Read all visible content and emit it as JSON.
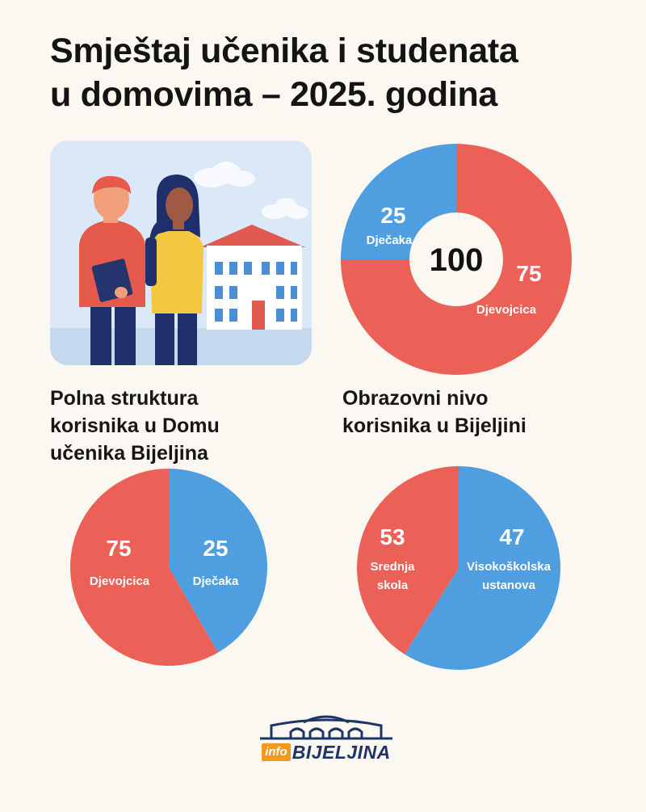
{
  "title": {
    "line1": "Smještaj učenika i studenata",
    "line2": "u domovima – 2025. godina"
  },
  "colors": {
    "red": "#eb6157",
    "blue": "#4f9ee0",
    "background": "#fbf8f1"
  },
  "chart_data": [
    {
      "type": "pie",
      "variant": "donut",
      "title": "",
      "center_label": "100",
      "slices": [
        {
          "label": "Djevojcica",
          "value": 75,
          "value_label": "75",
          "color": "#eb6157"
        },
        {
          "label": "Dječaka",
          "value": 25,
          "value_label": "25",
          "color": "#4f9ee0"
        }
      ]
    },
    {
      "type": "pie",
      "title_lines": [
        "Polna struktura",
        "korisnika u Domu",
        "učenika Bijeljina"
      ],
      "slices": [
        {
          "label": "Djevojcica",
          "value": 75,
          "value_label": "75",
          "color": "#eb6157"
        },
        {
          "label": "Dječaka",
          "value": 25,
          "value_label": "25",
          "color": "#4f9ee0"
        }
      ]
    },
    {
      "type": "pie",
      "title_lines": [
        "Obrazovni nivo",
        "korisnika u Bijeljini"
      ],
      "slices": [
        {
          "label_lines": [
            "Srednja",
            "skola"
          ],
          "value": 53,
          "value_label": "53",
          "color": "#eb6157"
        },
        {
          "label_lines": [
            "Visokoškolska",
            "ustanova"
          ],
          "value": 47,
          "value_label": "47",
          "color": "#4f9ee0"
        }
      ]
    }
  ],
  "logo": {
    "prefix": "info",
    "name": "BIJELJINA"
  }
}
